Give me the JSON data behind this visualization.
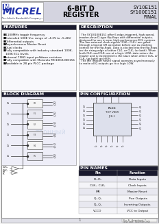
{
  "title_center": "6-BIT D\nREGISTER",
  "part_numbers": "SY10E151\nSY100E151\nFINAL",
  "company": "MICREL",
  "tagline": "The Infinite Bandwidth Company™",
  "features_title": "FEATURES",
  "features": [
    "1100MHz toggle frequency",
    "Extended 100E Vcc range of –4.2V to –5.46V",
    "Differential outputs",
    "Asynchronous Master Reset",
    "Dual clocks",
    "Fully compatible with industry standard 100K,\n100K ECL levels",
    "Internal 75KΩ input pulldown resistors",
    "Fully compatible with Motorola MC10E/100E151",
    "Available in 28-pin PLCC package"
  ],
  "description_title": "DESCRIPTION",
  "desc_lines": [
    "  The SY10/100E151 offer 6 edge-triggered, high-speed,",
    "master-slave D-type flip-flops with differential outputs,",
    "designed for use in new, high-performance ECL systems.",
    "The two external clock signals (CLK₁, CLK₂) are gated",
    "through a logical OR operation before use as clocking",
    "control for the flip-flops. Data is clocked into the flip-flops",
    "on the rising edge of either CLK₁ or CLK₂ (or both). When",
    "both CLK₁ and CLK₂ are at a logic LOW, data enters the",
    "master and is transferred to the slave when either CLK₁ or",
    "CLK₂ (or both) go HIGH.",
    "  The MR (Master Reset) signal operates asynchronously",
    "to make all Q outputs go to a logic LOW."
  ],
  "block_diagram_title": "BLOCK DIAGRAM",
  "pin_config_title": "PIN CONFIGURATION",
  "pin_names_title": "PIN NAMES",
  "pin_names_headers": [
    "Pin",
    "Function"
  ],
  "pin_names_rows": [
    [
      "D₀–D₅",
      "Data Inputs"
    ],
    [
      "CLK₁, CLK₂",
      "Clock Inputs"
    ],
    [
      "MR",
      "Master Reset"
    ],
    [
      "Q₀–Q₅",
      "True Outputs"
    ],
    [
      "Q̅₀–Q̅₅",
      "Inverting Outputs"
    ],
    [
      "VCCO",
      "VCC to Output"
    ]
  ],
  "bg_color": "#f5f5f5",
  "page_bg": "#ffffff",
  "header_bg": "#d4d4e0",
  "section_hdr_bg": "#1a1a2e",
  "section_hdr_fg": "#ffffff",
  "border_color": "#666666",
  "table_hdr_bg": "#1a1a2e",
  "table_hdr_fg": "#ffffff",
  "table_row1_bg": "#e8e8f0",
  "table_row2_bg": "#f4f4f8",
  "body_fg": "#111111",
  "watermark_color": "#b8c8e0",
  "logo_bg": "#e8eaf6",
  "chip_bg": "#dde0ec",
  "ff_bg": "#f0f0f0",
  "footer_bg": "#e0e0e8"
}
